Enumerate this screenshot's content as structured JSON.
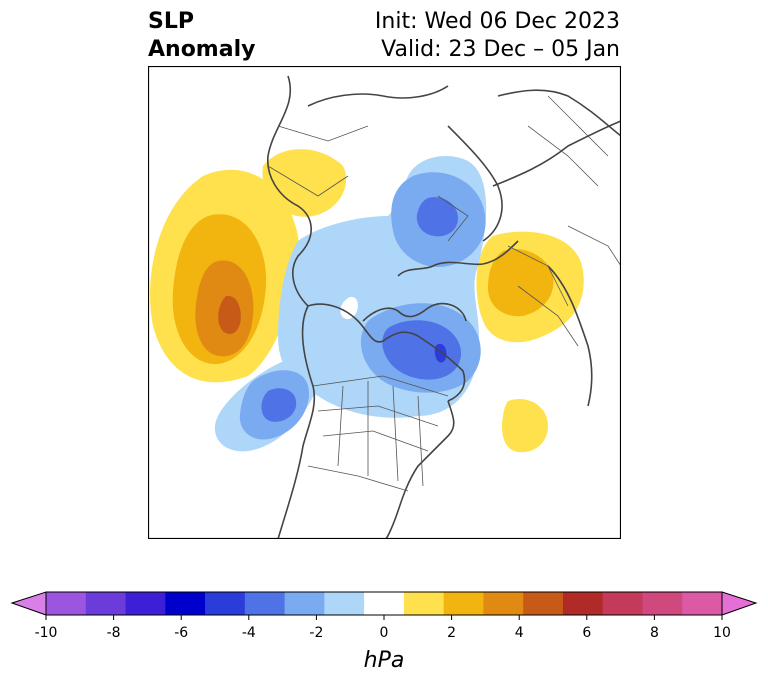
{
  "title": {
    "left_line1": "SLP",
    "left_line2": "Anomaly",
    "right_line1": "Init: Wed 06 Dec 2023",
    "right_line2": "Valid: 23 Dec – 05 Jan"
  },
  "map": {
    "projection": "north-polar-stereographic",
    "features": [
      {
        "name": "alaska-gulf-high",
        "level": 5
      },
      {
        "name": "western-canada-north-high",
        "level": 1
      },
      {
        "name": "eastern-europe-high",
        "level": 2
      },
      {
        "name": "eastern-atlantic-high",
        "level": 1
      },
      {
        "name": "greenland-low",
        "level": -5
      },
      {
        "name": "scandinavia-barents-low",
        "level": -4
      },
      {
        "name": "hudson-bay-low",
        "level": -4
      },
      {
        "name": "central-arctic-low",
        "level": -2
      }
    ]
  },
  "colorbar": {
    "unit": "hPa",
    "min": -10,
    "max": 10,
    "tick_labels": [
      "-10",
      "-8",
      "-6",
      "-4",
      "-2",
      "0",
      "2",
      "4",
      "6",
      "8",
      "10"
    ],
    "colors": [
      "#9b55df",
      "#6c3cdb",
      "#3c1fd6",
      "#0000cd",
      "#2a3ddb",
      "#4f73e6",
      "#7aaaf0",
      "#aed6f9",
      "#ffffff",
      "#ffe14d",
      "#f2b40f",
      "#e08a14",
      "#c85a18",
      "#b02a28",
      "#c43a5a",
      "#d0497e",
      "#dc5aa5"
    ],
    "under_color": "#d97fe8",
    "over_color": "#e66fd6"
  }
}
